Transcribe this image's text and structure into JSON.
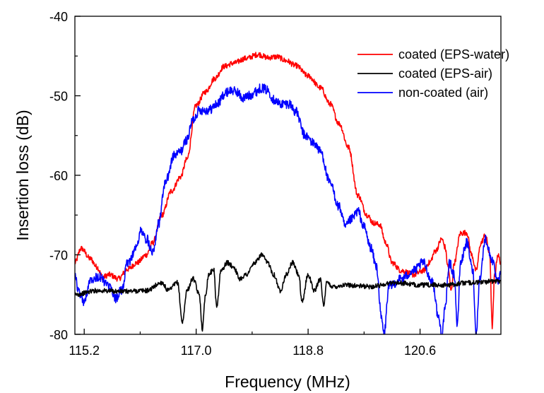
{
  "chart_data": {
    "type": "line",
    "xlabel": "Frequency (MHz)",
    "ylabel": "Insertion loss (dB)",
    "xlim": [
      115.05,
      121.9
    ],
    "ylim": [
      -80,
      -40
    ],
    "x_ticks": [
      {
        "value": 115.2,
        "label": "115.2"
      },
      {
        "value": 117.0,
        "label": "117.0"
      },
      {
        "value": 118.8,
        "label": "118.8"
      },
      {
        "value": 120.6,
        "label": "120.6"
      }
    ],
    "x_minor_ticks": [
      116.1,
      117.9,
      119.7,
      121.5
    ],
    "y_ticks": [
      {
        "value": -80,
        "label": "-80"
      },
      {
        "value": -70,
        "label": "-70"
      },
      {
        "value": -60,
        "label": "-60"
      },
      {
        "value": -50,
        "label": "-50"
      },
      {
        "value": -40,
        "label": "-40"
      }
    ],
    "y_minor_ticks": [
      -75,
      -65,
      -55,
      -45
    ],
    "grid": false,
    "legend_position": "top-right",
    "series": [
      {
        "name": "coated (EPS-water)",
        "color": "#ff0000",
        "noise": 0.35,
        "points": [
          [
            115.05,
            -71.0
          ],
          [
            115.15,
            -69.2
          ],
          [
            115.3,
            -70.5
          ],
          [
            115.4,
            -71.5
          ],
          [
            115.5,
            -72.8
          ],
          [
            115.6,
            -72.5
          ],
          [
            115.75,
            -73.0
          ],
          [
            115.9,
            -71.8
          ],
          [
            116.05,
            -71.0
          ],
          [
            116.2,
            -70.0
          ],
          [
            116.3,
            -68.5
          ],
          [
            116.45,
            -65.0
          ],
          [
            116.6,
            -62.0
          ],
          [
            116.75,
            -60.2
          ],
          [
            116.85,
            -58.0
          ],
          [
            117.0,
            -51.2
          ],
          [
            117.15,
            -49.5
          ],
          [
            117.3,
            -47.8
          ],
          [
            117.45,
            -46.3
          ],
          [
            117.6,
            -45.9
          ],
          [
            117.8,
            -45.3
          ],
          [
            118.0,
            -44.8
          ],
          [
            118.15,
            -45.2
          ],
          [
            118.3,
            -45.1
          ],
          [
            118.45,
            -45.6
          ],
          [
            118.6,
            -46.2
          ],
          [
            118.8,
            -47.5
          ],
          [
            119.0,
            -49.0
          ],
          [
            119.15,
            -51.0
          ],
          [
            119.3,
            -53.5
          ],
          [
            119.45,
            -56.5
          ],
          [
            119.6,
            -62.5
          ],
          [
            119.75,
            -65.0
          ],
          [
            119.85,
            -66.0
          ],
          [
            119.95,
            -66.2
          ],
          [
            120.05,
            -68.5
          ],
          [
            120.15,
            -71.0
          ],
          [
            120.3,
            -72.0
          ],
          [
            120.5,
            -72.5
          ],
          [
            120.65,
            -72.0
          ],
          [
            120.75,
            -71.0
          ],
          [
            120.85,
            -69.5
          ],
          [
            120.95,
            -68.0
          ],
          [
            121.0,
            -69.0
          ],
          [
            121.05,
            -71.5
          ],
          [
            121.1,
            -74.5
          ],
          [
            121.15,
            -71.0
          ],
          [
            121.25,
            -67.3
          ],
          [
            121.35,
            -67.2
          ],
          [
            121.43,
            -70.0
          ],
          [
            121.5,
            -72.0
          ],
          [
            121.58,
            -68.5
          ],
          [
            121.65,
            -67.5
          ],
          [
            121.72,
            -70.0
          ],
          [
            121.76,
            -79.0
          ],
          [
            121.8,
            -72.5
          ],
          [
            121.85,
            -70.0
          ],
          [
            121.9,
            -71.0
          ]
        ]
      },
      {
        "name": "coated (EPS-air)",
        "color": "#000000",
        "noise": 0.3,
        "points": [
          [
            115.05,
            -75.0
          ],
          [
            115.4,
            -74.5
          ],
          [
            115.8,
            -74.6
          ],
          [
            116.2,
            -74.5
          ],
          [
            116.45,
            -73.5
          ],
          [
            116.55,
            -74.5
          ],
          [
            116.7,
            -73.5
          ],
          [
            116.78,
            -78.5
          ],
          [
            116.85,
            -74.5
          ],
          [
            116.95,
            -73.0
          ],
          [
            117.05,
            -75.0
          ],
          [
            117.1,
            -79.3
          ],
          [
            117.15,
            -75.0
          ],
          [
            117.2,
            -72.5
          ],
          [
            117.28,
            -71.8
          ],
          [
            117.33,
            -76.5
          ],
          [
            117.4,
            -72.0
          ],
          [
            117.5,
            -71.0
          ],
          [
            117.6,
            -71.5
          ],
          [
            117.7,
            -73.0
          ],
          [
            117.8,
            -72.5
          ],
          [
            117.95,
            -71.0
          ],
          [
            118.05,
            -70.0
          ],
          [
            118.15,
            -71.0
          ],
          [
            118.25,
            -72.5
          ],
          [
            118.35,
            -74.5
          ],
          [
            118.45,
            -72.5
          ],
          [
            118.55,
            -71.0
          ],
          [
            118.65,
            -72.5
          ],
          [
            118.7,
            -76.0
          ],
          [
            118.8,
            -72.5
          ],
          [
            118.9,
            -74.5
          ],
          [
            119.0,
            -73.0
          ],
          [
            119.05,
            -76.5
          ],
          [
            119.1,
            -73.5
          ],
          [
            119.2,
            -74.0
          ],
          [
            119.4,
            -73.8
          ],
          [
            119.8,
            -74.0
          ],
          [
            120.2,
            -73.5
          ],
          [
            120.6,
            -73.8
          ],
          [
            121.0,
            -73.8
          ],
          [
            121.4,
            -73.5
          ],
          [
            121.9,
            -73.3
          ]
        ]
      },
      {
        "name": "non-coated (air)",
        "color": "#0000ff",
        "noise": 0.6,
        "points": [
          [
            115.05,
            -72.0
          ],
          [
            115.1,
            -74.5
          ],
          [
            115.2,
            -76.0
          ],
          [
            115.3,
            -73.0
          ],
          [
            115.45,
            -72.8
          ],
          [
            115.6,
            -74.0
          ],
          [
            115.7,
            -75.5
          ],
          [
            115.8,
            -74.5
          ],
          [
            115.9,
            -71.0
          ],
          [
            116.05,
            -69.0
          ],
          [
            116.1,
            -67.0
          ],
          [
            116.2,
            -68.0
          ],
          [
            116.3,
            -69.5
          ],
          [
            116.4,
            -66.0
          ],
          [
            116.5,
            -61.0
          ],
          [
            116.65,
            -57.5
          ],
          [
            116.75,
            -57.0
          ],
          [
            116.85,
            -55.5
          ],
          [
            116.95,
            -53.0
          ],
          [
            117.05,
            -51.8
          ],
          [
            117.2,
            -51.8
          ],
          [
            117.35,
            -51.0
          ],
          [
            117.45,
            -49.8
          ],
          [
            117.55,
            -49.3
          ],
          [
            117.65,
            -49.5
          ],
          [
            117.75,
            -50.3
          ],
          [
            117.85,
            -50.0
          ],
          [
            117.95,
            -49.5
          ],
          [
            118.05,
            -49.0
          ],
          [
            118.15,
            -49.3
          ],
          [
            118.25,
            -50.5
          ],
          [
            118.35,
            -51.0
          ],
          [
            118.5,
            -51.0
          ],
          [
            118.6,
            -52.0
          ],
          [
            118.75,
            -55.0
          ],
          [
            118.9,
            -56.0
          ],
          [
            119.0,
            -57.0
          ],
          [
            119.15,
            -61.0
          ],
          [
            119.3,
            -64.0
          ],
          [
            119.4,
            -66.5
          ],
          [
            119.5,
            -65.5
          ],
          [
            119.6,
            -64.5
          ],
          [
            119.7,
            -66.5
          ],
          [
            119.8,
            -69.0
          ],
          [
            119.9,
            -71.5
          ],
          [
            119.98,
            -78.0
          ],
          [
            120.02,
            -80.0
          ],
          [
            120.1,
            -74.0
          ],
          [
            120.3,
            -73.0
          ],
          [
            120.5,
            -72.0
          ],
          [
            120.65,
            -71.0
          ],
          [
            120.8,
            -73.5
          ],
          [
            120.9,
            -78.0
          ],
          [
            120.95,
            -80.0
          ],
          [
            121.0,
            -77.0
          ],
          [
            121.07,
            -71.0
          ],
          [
            121.15,
            -72.5
          ],
          [
            121.2,
            -79.0
          ],
          [
            121.25,
            -71.0
          ],
          [
            121.35,
            -68.5
          ],
          [
            121.45,
            -72.0
          ],
          [
            121.5,
            -80.0
          ],
          [
            121.56,
            -73.0
          ],
          [
            121.65,
            -68.0
          ],
          [
            121.75,
            -70.5
          ],
          [
            121.85,
            -73.5
          ],
          [
            121.9,
            -72.5
          ]
        ]
      }
    ]
  }
}
